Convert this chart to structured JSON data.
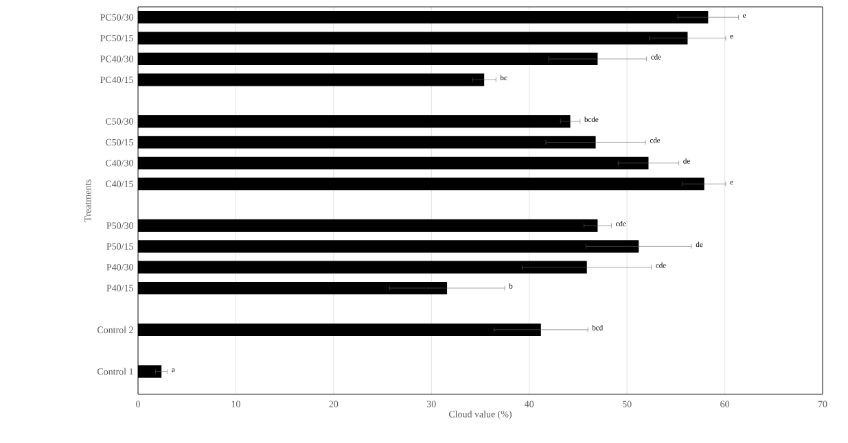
{
  "chart_data": {
    "type": "bar",
    "orientation": "horizontal",
    "color": "#000000",
    "categories": [
      "PC50/30",
      "PC50/15",
      "PC40/30",
      "PC40/15",
      null,
      "C50/30",
      "C50/15",
      "C40/30",
      "C40/15",
      null,
      "P50/30",
      "P50/15",
      "P40/30",
      "P40/15",
      null,
      "Control 2",
      null,
      "Control 1"
    ],
    "values": [
      58.3,
      56.2,
      47.0,
      35.4,
      null,
      44.2,
      46.8,
      52.2,
      57.9,
      null,
      47.0,
      51.2,
      45.9,
      31.6,
      null,
      41.2,
      null,
      2.4
    ],
    "errors": [
      3.1,
      3.9,
      5.0,
      1.2,
      null,
      1.0,
      5.1,
      3.1,
      2.2,
      null,
      1.4,
      5.4,
      6.6,
      5.9,
      null,
      4.8,
      null,
      0.6
    ],
    "xlim": [
      0,
      70
    ],
    "xticks": [
      0,
      10,
      20,
      30,
      40,
      50,
      60,
      70
    ],
    "xlabel": "Cloud value (%)",
    "ylabel": "Treatments",
    "grid": "x",
    "annotations": [
      {
        "text": "e",
        "x": 61.4,
        "y": "PC50/30"
      },
      {
        "text": "e",
        "x": 60.1,
        "y": "PC50/15"
      },
      {
        "text": "cde",
        "x": 52.0,
        "y": "PC40/30"
      },
      {
        "text": "bc",
        "x": 36.6,
        "y": "PC40/15"
      },
      {
        "text": "bcde",
        "x": 45.2,
        "y": "C50/30"
      },
      {
        "text": "cde",
        "x": 51.9,
        "y": "C50/15"
      },
      {
        "text": "de",
        "x": 55.3,
        "y": "C40/30"
      },
      {
        "text": "e",
        "x": 60.1,
        "y": "C40/15"
      },
      {
        "text": "cde",
        "x": 48.4,
        "y": "P50/30"
      },
      {
        "text": "de",
        "x": 56.6,
        "y": "P50/15"
      },
      {
        "text": "cde",
        "x": 52.5,
        "y": "P40/30"
      },
      {
        "text": "b",
        "x": 37.5,
        "y": "P40/15"
      },
      {
        "text": "bcd",
        "x": 46.0,
        "y": "Control 2"
      },
      {
        "text": "a",
        "x": 3.0,
        "y": "Control 1"
      }
    ]
  }
}
